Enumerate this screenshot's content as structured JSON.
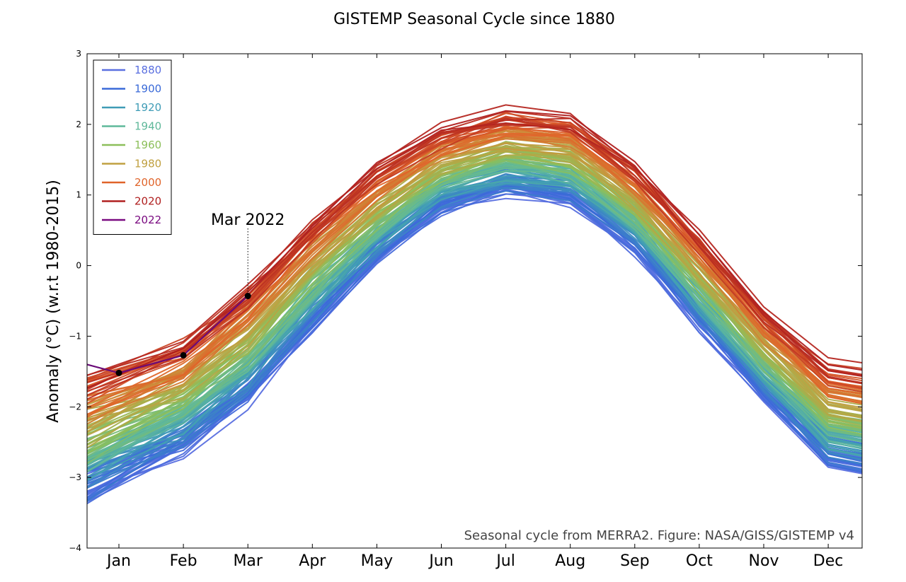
{
  "chart_data": {
    "type": "line",
    "title": "GISTEMP Seasonal Cycle since 1880",
    "ylabel": "Anomaly (°C) (w.r.t 1980-2015)",
    "xlabel": "",
    "categories": [
      "Jan",
      "Feb",
      "Mar",
      "Apr",
      "May",
      "Jun",
      "Jul",
      "Aug",
      "Sep",
      "Oct",
      "Nov",
      "Dec"
    ],
    "ylim": [
      -4,
      3
    ],
    "yticks": [
      "3",
      "2",
      "1",
      "0",
      "−1",
      "−2",
      "−3",
      "−4"
    ],
    "ytick_values": [
      3,
      2,
      1,
      0,
      -1,
      -2,
      -3,
      -4
    ],
    "grid": false,
    "legend_position": "top-left",
    "legend": [
      {
        "label": "1880",
        "color": "#5a6fe0"
      },
      {
        "label": "1900",
        "color": "#3a6ad8"
      },
      {
        "label": "1920",
        "color": "#3f9cb6"
      },
      {
        "label": "1940",
        "color": "#5fb89a"
      },
      {
        "label": "1960",
        "color": "#8cbf5a"
      },
      {
        "label": "1980",
        "color": "#c0a040"
      },
      {
        "label": "2000",
        "color": "#e0642a"
      },
      {
        "label": "2020",
        "color": "#b02020"
      },
      {
        "label": "2022",
        "color": "#7a0a80"
      }
    ],
    "series_2022": {
      "values": [
        -1.52,
        -1.27,
        -0.43
      ],
      "color": "#6a0a78"
    },
    "annotation": {
      "text": "Mar 2022",
      "x": "Mar",
      "y": -0.43
    },
    "credit": "Seasonal cycle from MERRA2. Figure: NASA/GISS/GISTEMP v4",
    "envelope": {
      "low": [
        -3.15,
        -2.75,
        -2.05,
        -1.0,
        -0.05,
        0.68,
        0.95,
        0.82,
        0.12,
        -0.95,
        -1.95,
        -2.9
      ],
      "high": [
        -1.2,
        -0.85,
        -0.05,
        0.85,
        1.6,
        2.1,
        2.35,
        2.25,
        1.6,
        0.65,
        -0.45,
        -1.2
      ]
    }
  }
}
